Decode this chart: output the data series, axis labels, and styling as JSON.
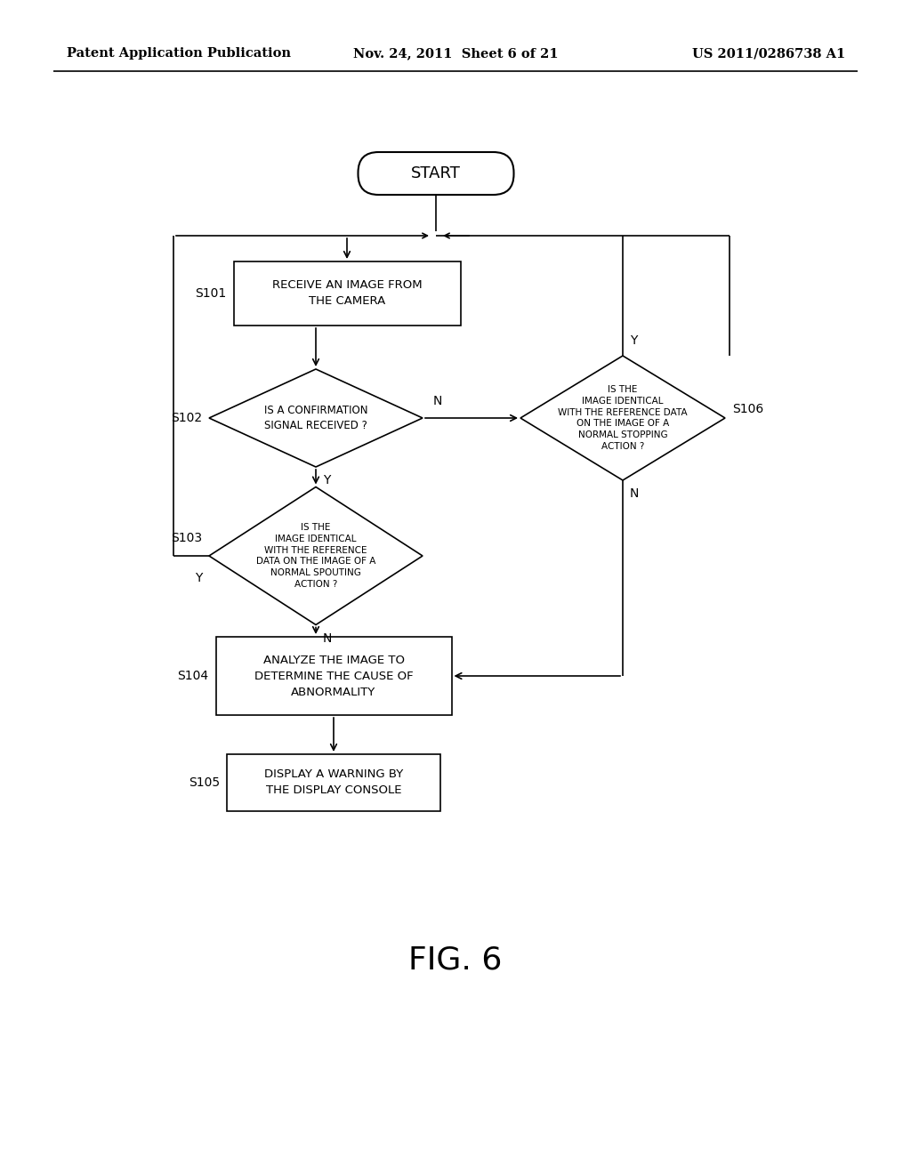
{
  "bg_color": "#ffffff",
  "header_left": "Patent Application Publication",
  "header_center": "Nov. 24, 2011  Sheet 6 of 21",
  "header_right": "US 2011/0286738 A1",
  "figure_label": "FIG. 6",
  "start_label": "START",
  "s101_label": "RECEIVE AN IMAGE FROM\nTHE CAMERA",
  "s102_label": "IS A CONFIRMATION\nSIGNAL RECEIVED ?",
  "s103_label": "IS THE\nIMAGE IDENTICAL\nWITH THE REFERENCE\nDATA ON THE IMAGE OF A\nNORMAL SPOUTING\nACTION ?",
  "s106_label": "IS THE\nIMAGE IDENTICAL\nWITH THE REFERENCE DATA\nON THE IMAGE OF A\nNORMAL STOPPING\nACTION ?",
  "s104_label": "ANALYZE THE IMAGE TO\nDETERMINE THE CAUSE OF\nABNORMALITY",
  "s105_label": "DISPLAY A WARNING BY\nTHE DISPLAY CONSOLE",
  "step_labels": [
    "S101",
    "S102",
    "S103",
    "S104",
    "S105",
    "S106"
  ]
}
